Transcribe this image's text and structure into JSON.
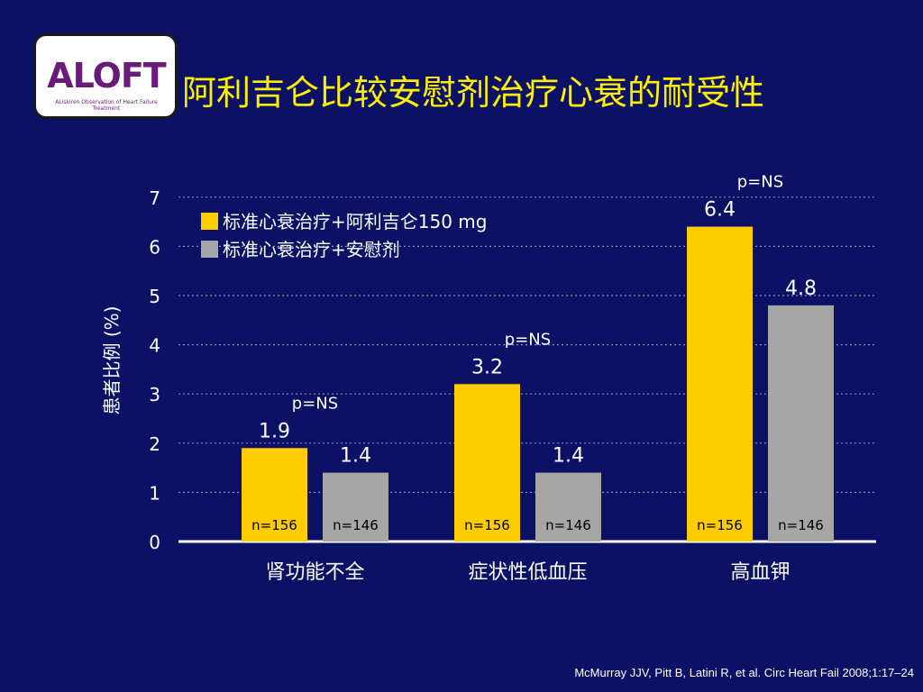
{
  "logo": {
    "word": "ALOFT",
    "subtitle": "ALiskiren Observation of Heart Failure Treatment"
  },
  "slide": {
    "title": "阿利吉仑比较安慰剂治疗心衰的耐受性",
    "footer": "McMurray JJV, Pitt B, Latini R, et al. Circ Heart Fail 2008;1:17–24"
  },
  "colors": {
    "background": "#0b1265",
    "aliskiren": "#ffcc00",
    "placebo": "#a6a6a6",
    "title": "#ffee00"
  },
  "chart_data": {
    "type": "bar",
    "title": "",
    "xlabel": "",
    "ylabel": "患者比例 (%)",
    "ylim": [
      0,
      7
    ],
    "yticks": [
      "0",
      "1",
      "2",
      "3",
      "4",
      "5",
      "6",
      "7"
    ],
    "grid": true,
    "legend_position": "top-left",
    "categories": [
      "肾功能不全",
      "症状性低血压",
      "高血钾"
    ],
    "series": [
      {
        "name": "标准心衰治疗+阿利吉仑150 mg",
        "values": [
          1.9,
          3.2,
          6.4
        ],
        "labels": [
          "1.9",
          "3.2",
          "6.4"
        ],
        "n": [
          "n=156",
          "n=156",
          "n=156"
        ]
      },
      {
        "name": "标准心衰治疗+安慰剂",
        "values": [
          1.4,
          1.4,
          4.8
        ],
        "labels": [
          "1.4",
          "1.4",
          "4.8"
        ],
        "n": [
          "n=146",
          "n=146",
          "n=146"
        ]
      }
    ],
    "pvalues": [
      "p=NS",
      "p=NS",
      "p=NS"
    ]
  }
}
